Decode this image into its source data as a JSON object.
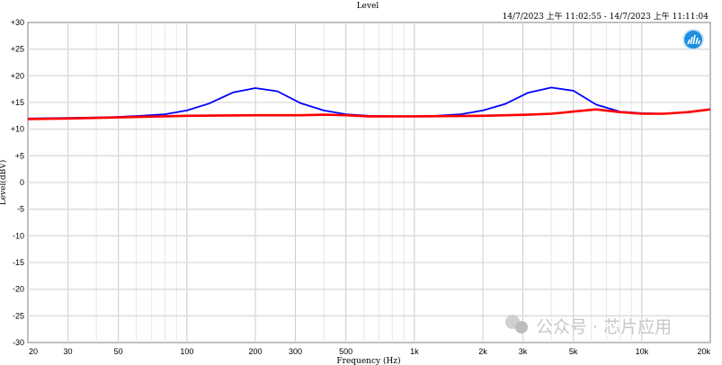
{
  "chart_data": {
    "type": "line",
    "title": "Level",
    "subtitle": "14/7/2023 上午 11:02:55 - 14/7/2023 上午 11:11:04",
    "xlabel": "Frequency (Hz)",
    "ylabel": "Level(dBV)",
    "xscale": "log",
    "xlim": [
      20,
      20000
    ],
    "ylim": [
      -30,
      30
    ],
    "grid": true,
    "x_tick_values": [
      20,
      30,
      50,
      100,
      200,
      300,
      500,
      1000,
      2000,
      3000,
      5000,
      10000,
      20000
    ],
    "x_tick_labels": [
      "20",
      "30",
      "50",
      "100",
      "200",
      "300",
      "500",
      "1k",
      "2k",
      "3k",
      "5k",
      "10k",
      "20k"
    ],
    "y_tick_values": [
      30,
      25,
      20,
      15,
      10,
      5,
      0,
      -5,
      -10,
      -15,
      -20,
      -25,
      -30
    ],
    "y_tick_labels": [
      "+30",
      "+25",
      "+20",
      "+15",
      "+10",
      "+5",
      "0",
      "-5",
      "-10",
      "-15",
      "-20",
      "-25",
      "-30"
    ],
    "series": [
      {
        "color": "#0000ff",
        "x": [
          20,
          30,
          40,
          50,
          63,
          80,
          100,
          125,
          160,
          200,
          250,
          315,
          400,
          500,
          630,
          800,
          1000,
          1250,
          1600,
          2000,
          2500,
          3150,
          4000,
          5000,
          6300,
          8000,
          10000,
          12500,
          16000,
          20000
        ],
        "y": [
          12.0,
          12.1,
          12.2,
          12.3,
          12.5,
          12.8,
          13.5,
          14.8,
          16.9,
          17.7,
          17.1,
          14.9,
          13.5,
          12.8,
          12.5,
          12.4,
          12.4,
          12.5,
          12.8,
          13.5,
          14.7,
          16.8,
          17.8,
          17.2,
          14.6,
          13.3,
          13.0,
          12.9,
          13.2,
          13.7
        ]
      },
      {
        "color": "#ff0000",
        "x": [
          20,
          30,
          50,
          100,
          200,
          315,
          400,
          500,
          630,
          1000,
          2000,
          3150,
          4000,
          5000,
          6300,
          8000,
          10000,
          12500,
          16000,
          20000
        ],
        "y": [
          11.9,
          12.0,
          12.2,
          12.5,
          12.6,
          12.6,
          12.7,
          12.6,
          12.4,
          12.4,
          12.5,
          12.7,
          12.9,
          13.3,
          13.7,
          13.2,
          12.9,
          12.9,
          13.2,
          13.7
        ]
      }
    ]
  },
  "watermark": "公众号 · 芯片应用",
  "icon": "analyzer-app-icon"
}
